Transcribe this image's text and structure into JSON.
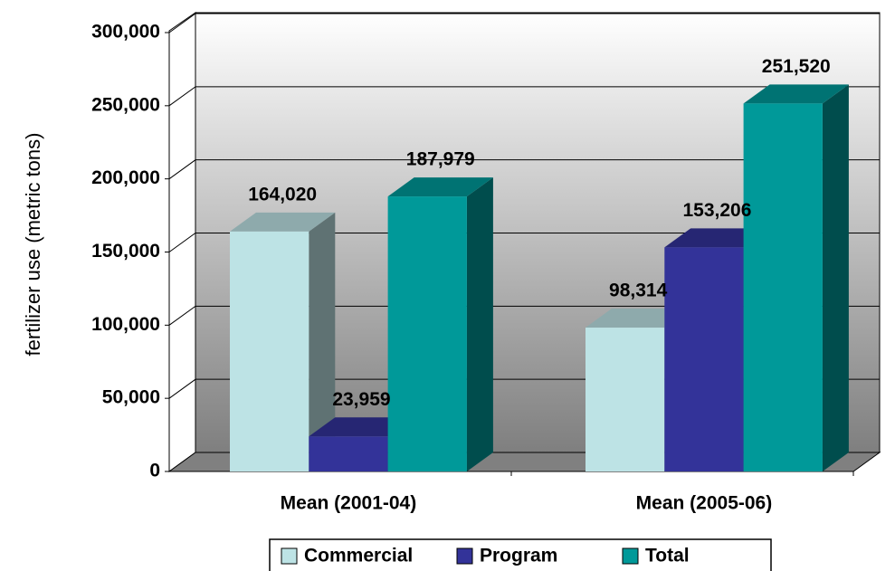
{
  "chart_data": {
    "type": "bar3d",
    "y_label": "fertilizer use (metric tons)",
    "categories": [
      "Mean (2001-04)",
      "Mean (2005-06)"
    ],
    "series": [
      {
        "name": "Commercial",
        "color": "#bde3e5",
        "values": [
          164020,
          98314
        ],
        "value_labels": [
          "164,020",
          "98,314"
        ]
      },
      {
        "name": "Program",
        "color": "#333399",
        "values": [
          23959,
          153206
        ],
        "value_labels": [
          "23,959",
          "153,206"
        ]
      },
      {
        "name": "Total",
        "color": "#009999",
        "values": [
          187979,
          251520
        ],
        "value_labels": [
          "187,979",
          "251,520"
        ]
      }
    ],
    "ylim": [
      0,
      300000
    ],
    "yticks": [
      0,
      {
        "value": 50000,
        "label": "50,000"
      },
      {
        "value": 100000,
        "label": "100,000"
      },
      {
        "value": 150000,
        "label": "150,000"
      },
      {
        "value": 200000,
        "label": "200,000"
      },
      {
        "value": 250000,
        "label": "250,000"
      },
      {
        "value": 300000,
        "label": "300,000"
      }
    ],
    "grid": true,
    "legend": "bottom"
  }
}
